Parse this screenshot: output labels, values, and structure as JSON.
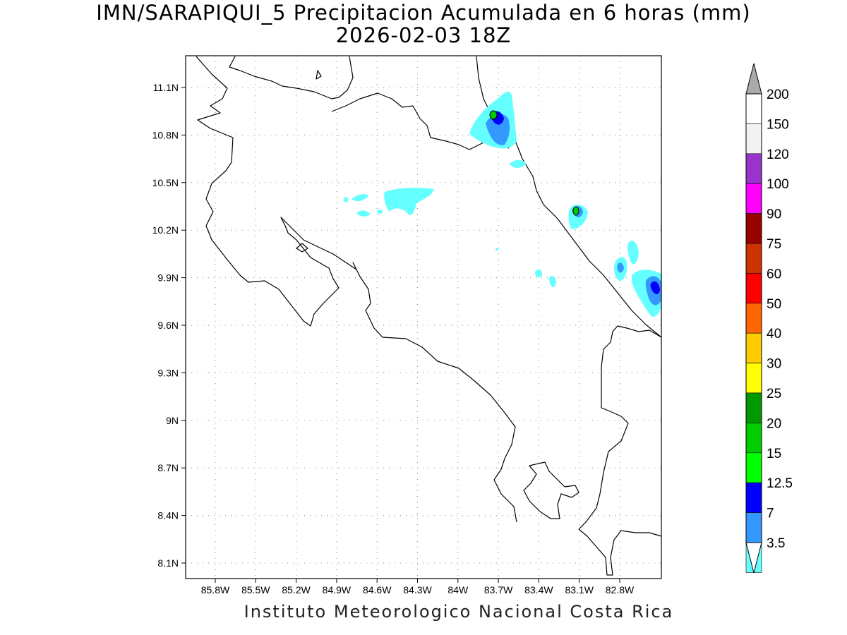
{
  "header": {
    "title": "IMN/SARAPIQUI_5 Precipitacion Acumulada en 6 horas (mm)",
    "valid_time": "2026-02-03 18Z"
  },
  "footer": {
    "credit": "Instituto Meteorologico Nacional Costa Rica"
  },
  "axes": {
    "lon_ticks": [
      "85.8W",
      "85.5W",
      "85.2W",
      "84.9W",
      "84.6W",
      "84.3W",
      "84W",
      "83.7W",
      "83.4W",
      "83.1W",
      "82.8W"
    ],
    "lat_ticks": [
      "11.1N",
      "10.8N",
      "10.5N",
      "10.2N",
      "9.9N",
      "9.6N",
      "9.3N",
      "9N",
      "8.7N",
      "8.4N",
      "8.1N"
    ],
    "grid": "dotted"
  },
  "colorbar": {
    "levels": [
      "200",
      "150",
      "120",
      "100",
      "90",
      "75",
      "60",
      "50",
      "40",
      "30",
      "25",
      "20",
      "15",
      "12.5",
      "7",
      "3.5"
    ],
    "colors": [
      "#ffffff",
      "#f2f2f2",
      "#9933cc",
      "#ff00ff",
      "#990000",
      "#cc3300",
      "#ff0000",
      "#ff6600",
      "#ffcc00",
      "#ffff00",
      "#009900",
      "#00cc00",
      "#00ff00",
      "#0000ff",
      "#3399ff",
      "#66ffff"
    ],
    "over_color": "#aaaaaa",
    "under_color": "#ffffff"
  }
}
